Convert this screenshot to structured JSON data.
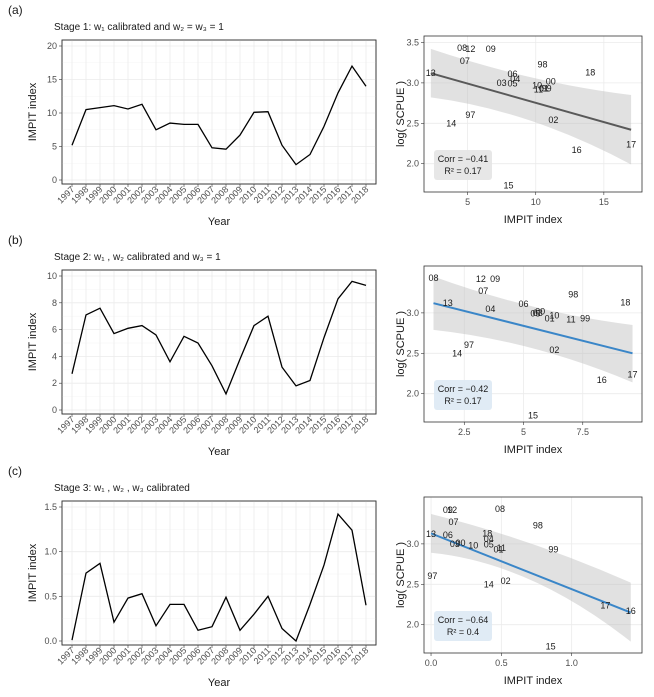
{
  "figure": {
    "years": [
      "1997",
      "1998",
      "1999",
      "2000",
      "2001",
      "2002",
      "2003",
      "2004",
      "2005",
      "2006",
      "2007",
      "2008",
      "2009",
      "2010",
      "2011",
      "2012",
      "2013",
      "2014",
      "2015",
      "2016",
      "2017",
      "2018"
    ]
  },
  "chart_data": [
    {
      "panel": "(a)",
      "title": "Stage 1:",
      "title_rest": "calibrated and",
      "title_eq": "w₂ = w₃ = 1",
      "title_w": "w₁",
      "line": {
        "type": "line",
        "xlabel": "Year",
        "ylabel": "IMPIT index",
        "ylim": [
          0,
          20
        ],
        "yticks": [
          0,
          5,
          10,
          15,
          20
        ],
        "values": [
          5.2,
          10.5,
          10.8,
          11.1,
          10.6,
          11.3,
          7.5,
          8.5,
          8.3,
          8.3,
          4.8,
          4.6,
          6.7,
          10.1,
          10.2,
          5.2,
          2.3,
          3.8,
          8.0,
          13.0,
          17.0,
          14.0
        ]
      },
      "scatter": {
        "type": "scatter",
        "xlabel": "IMPIT index",
        "ylabel": "log( SCPUE )",
        "xlim": [
          1.8,
          17.8
        ],
        "ylim": [
          1.65,
          3.58
        ],
        "xticks": [
          5,
          10,
          15
        ],
        "yticks": [
          2.0,
          2.5,
          3.0,
          3.5
        ],
        "line_color": "#595959",
        "fit": {
          "x": [
            2.3,
            17.0
          ],
          "y": [
            3.12,
            2.42
          ]
        },
        "band": {
          "upper_start": 3.42,
          "upper_mid": 2.93,
          "upper_end": 2.85,
          "lower_start": 2.82,
          "lower_mid": 2.73,
          "lower_end": 1.99
        },
        "stats": {
          "corr": "Corr = −0.41",
          "r2": "R² = 0.17"
        },
        "points": [
          {
            "label": "13",
            "x": 2.3,
            "y": 3.12
          },
          {
            "label": "08",
            "x": 4.6,
            "y": 3.43
          },
          {
            "label": "12",
            "x": 5.2,
            "y": 3.42
          },
          {
            "label": "09",
            "x": 6.7,
            "y": 3.42
          },
          {
            "label": "07",
            "x": 4.8,
            "y": 3.27
          },
          {
            "label": "06",
            "x": 8.3,
            "y": 3.11
          },
          {
            "label": "04",
            "x": 8.5,
            "y": 3.05
          },
          {
            "label": "03",
            "x": 7.5,
            "y": 3.0
          },
          {
            "label": "05",
            "x": 8.3,
            "y": 2.99
          },
          {
            "label": "98",
            "x": 10.5,
            "y": 3.23
          },
          {
            "label": "18",
            "x": 14.0,
            "y": 3.13
          },
          {
            "label": "00",
            "x": 11.1,
            "y": 3.02
          },
          {
            "label": "10",
            "x": 10.1,
            "y": 2.97
          },
          {
            "label": "01",
            "x": 10.6,
            "y": 2.93
          },
          {
            "label": "99",
            "x": 10.8,
            "y": 2.93
          },
          {
            "label": "11",
            "x": 10.2,
            "y": 2.92
          },
          {
            "label": "97",
            "x": 5.2,
            "y": 2.6
          },
          {
            "label": "14",
            "x": 3.8,
            "y": 2.5
          },
          {
            "label": "02",
            "x": 11.3,
            "y": 2.54
          },
          {
            "label": "16",
            "x": 13.0,
            "y": 2.17
          },
          {
            "label": "17",
            "x": 17.0,
            "y": 2.24
          },
          {
            "label": "15",
            "x": 8.0,
            "y": 1.73
          }
        ]
      }
    },
    {
      "panel": "(b)",
      "title": "Stage 2:",
      "title_rest": "calibrated and",
      "title_eq": "w₃ = 1",
      "title_w": "w₁ , w₂",
      "line": {
        "type": "line",
        "xlabel": "Year",
        "ylabel": "IMPIT index",
        "ylim": [
          0,
          10
        ],
        "yticks": [
          0,
          2,
          4,
          6,
          8,
          10
        ],
        "values": [
          2.7,
          7.1,
          7.6,
          5.7,
          6.1,
          6.3,
          5.6,
          3.6,
          5.5,
          5.0,
          3.3,
          1.2,
          3.8,
          6.3,
          7.0,
          3.2,
          1.8,
          2.2,
          5.4,
          8.3,
          9.6,
          9.3
        ]
      },
      "scatter": {
        "type": "scatter",
        "xlabel": "IMPIT index",
        "ylabel": "log( SCPUE )",
        "xlim": [
          0.8,
          10.0
        ],
        "ylim": [
          1.65,
          3.58
        ],
        "xticks": [
          2.5,
          5.0,
          7.5
        ],
        "yticks": [
          2.0,
          2.5,
          3.0
        ],
        "line_color": "#3a86c8",
        "fit": {
          "x": [
            1.2,
            9.6
          ],
          "y": [
            3.12,
            2.5
          ]
        },
        "band": {
          "upper_start": 3.45,
          "upper_mid": 2.93,
          "upper_end": 2.85,
          "lower_start": 2.79,
          "lower_mid": 2.73,
          "lower_end": 2.14
        },
        "stats": {
          "corr": "Corr = −0.42",
          "r2": "R² = 0.17"
        },
        "points": [
          {
            "label": "08",
            "x": 1.2,
            "y": 3.43
          },
          {
            "label": "12",
            "x": 3.2,
            "y": 3.42
          },
          {
            "label": "09",
            "x": 3.8,
            "y": 3.42
          },
          {
            "label": "07",
            "x": 3.3,
            "y": 3.27
          },
          {
            "label": "13",
            "x": 1.8,
            "y": 3.12
          },
          {
            "label": "06",
            "x": 5.0,
            "y": 3.11
          },
          {
            "label": "04",
            "x": 3.6,
            "y": 3.05
          },
          {
            "label": "03",
            "x": 5.6,
            "y": 3.0
          },
          {
            "label": "05",
            "x": 5.5,
            "y": 2.99
          },
          {
            "label": "00",
            "x": 5.7,
            "y": 3.02
          },
          {
            "label": "10",
            "x": 6.3,
            "y": 2.97
          },
          {
            "label": "01",
            "x": 6.1,
            "y": 2.93
          },
          {
            "label": "11",
            "x": 7.0,
            "y": 2.92
          },
          {
            "label": "99",
            "x": 7.6,
            "y": 2.93
          },
          {
            "label": "98",
            "x": 7.1,
            "y": 3.23
          },
          {
            "label": "18",
            "x": 9.3,
            "y": 3.13
          },
          {
            "label": "97",
            "x": 2.7,
            "y": 2.6
          },
          {
            "label": "14",
            "x": 2.2,
            "y": 2.5
          },
          {
            "label": "02",
            "x": 6.3,
            "y": 2.54
          },
          {
            "label": "16",
            "x": 8.3,
            "y": 2.17
          },
          {
            "label": "17",
            "x": 9.6,
            "y": 2.24
          },
          {
            "label": "15",
            "x": 5.4,
            "y": 1.73
          }
        ]
      }
    },
    {
      "panel": "(c)",
      "title": "Stage 3:",
      "title_rest": "calibrated",
      "title_eq": "",
      "title_w": "w₁ , w₂ , w₃",
      "line": {
        "type": "line",
        "xlabel": "Year",
        "ylabel": "IMPIT index",
        "ylim": [
          0,
          1.5
        ],
        "yticks": [
          0.0,
          0.5,
          1.0,
          1.5
        ],
        "values": [
          0.01,
          0.76,
          0.87,
          0.21,
          0.48,
          0.53,
          0.17,
          0.41,
          0.41,
          0.12,
          0.16,
          0.49,
          0.12,
          0.3,
          0.5,
          0.14,
          0.0,
          0.41,
          0.85,
          1.42,
          1.24,
          0.4
        ]
      },
      "scatter": {
        "type": "scatter",
        "xlabel": "IMPIT index",
        "ylabel": "log( SCPUE )",
        "xlim": [
          -0.05,
          1.5
        ],
        "ylim": [
          1.65,
          3.58
        ],
        "xticks": [
          0.0,
          0.5,
          1.0
        ],
        "yticks": [
          2.0,
          2.5,
          3.0
        ],
        "line_color": "#3a86c8",
        "fit": {
          "x": [
            0.0,
            1.42
          ],
          "y": [
            3.13,
            2.15
          ]
        },
        "band": {
          "upper_start": 3.37,
          "upper_mid": 2.99,
          "upper_end": 2.52,
          "lower_start": 2.89,
          "lower_mid": 2.84,
          "lower_end": 1.79
        },
        "stats": {
          "corr": "Corr = −0.64",
          "r2": "R² = 0.4"
        },
        "points": [
          {
            "label": "09",
            "x": 0.12,
            "y": 3.42
          },
          {
            "label": "12",
            "x": 0.15,
            "y": 3.42
          },
          {
            "label": "08",
            "x": 0.49,
            "y": 3.43
          },
          {
            "label": "07",
            "x": 0.16,
            "y": 3.27
          },
          {
            "label": "13",
            "x": 0.0,
            "y": 3.12
          },
          {
            "label": "06",
            "x": 0.12,
            "y": 3.11
          },
          {
            "label": "18",
            "x": 0.4,
            "y": 3.13
          },
          {
            "label": "04",
            "x": 0.41,
            "y": 3.06
          },
          {
            "label": "98",
            "x": 0.76,
            "y": 3.23
          },
          {
            "label": "03",
            "x": 0.17,
            "y": 3.0
          },
          {
            "label": "00",
            "x": 0.21,
            "y": 3.01
          },
          {
            "label": "10",
            "x": 0.3,
            "y": 2.98
          },
          {
            "label": "05",
            "x": 0.41,
            "y": 2.99
          },
          {
            "label": "01",
            "x": 0.48,
            "y": 2.93
          },
          {
            "label": "11",
            "x": 0.5,
            "y": 2.95
          },
          {
            "label": "99",
            "x": 0.87,
            "y": 2.93
          },
          {
            "label": "97",
            "x": 0.01,
            "y": 2.6
          },
          {
            "label": "14",
            "x": 0.41,
            "y": 2.5
          },
          {
            "label": "02",
            "x": 0.53,
            "y": 2.54
          },
          {
            "label": "17",
            "x": 1.24,
            "y": 2.24
          },
          {
            "label": "16",
            "x": 1.42,
            "y": 2.17
          },
          {
            "label": "15",
            "x": 0.85,
            "y": 1.73
          }
        ]
      }
    }
  ]
}
